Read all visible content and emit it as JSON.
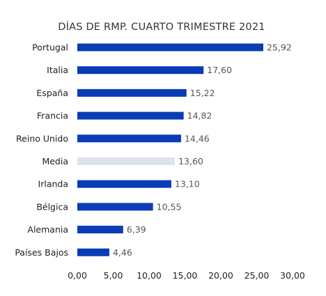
{
  "chart_data": {
    "type": "bar",
    "orientation": "horizontal",
    "title": "DÍAS DE RMP. CUARTO TRIMESTRE 2021",
    "categories": [
      "Portugal",
      "Italia",
      "España",
      "Francia",
      "Reino Unido",
      "Media",
      "Irlanda",
      "Bélgica",
      "Alemania",
      "Países Bajos"
    ],
    "values": [
      25.92,
      17.6,
      15.22,
      14.82,
      14.46,
      13.6,
      13.1,
      10.55,
      6.39,
      4.46
    ],
    "value_labels": [
      "25,92",
      "17,60",
      "15,22",
      "14,82",
      "14,46",
      "13,60",
      "13,10",
      "10,55",
      "6,39",
      "4,46"
    ],
    "highlight_category": "Media",
    "xlim": [
      0,
      30
    ],
    "x_ticks": [
      0,
      5,
      10,
      15,
      20,
      25,
      30
    ],
    "x_tick_labels": [
      "0,00",
      "5,00",
      "10,00",
      "15,00",
      "20,00",
      "25,00",
      "30,00"
    ],
    "xlabel": "",
    "ylabel": "",
    "grid": false,
    "legend": "none",
    "colors": {
      "bar": "#0a3db5",
      "highlight": "#dde3ec",
      "text": "#1e1e1e",
      "value_text": "#555555"
    }
  }
}
